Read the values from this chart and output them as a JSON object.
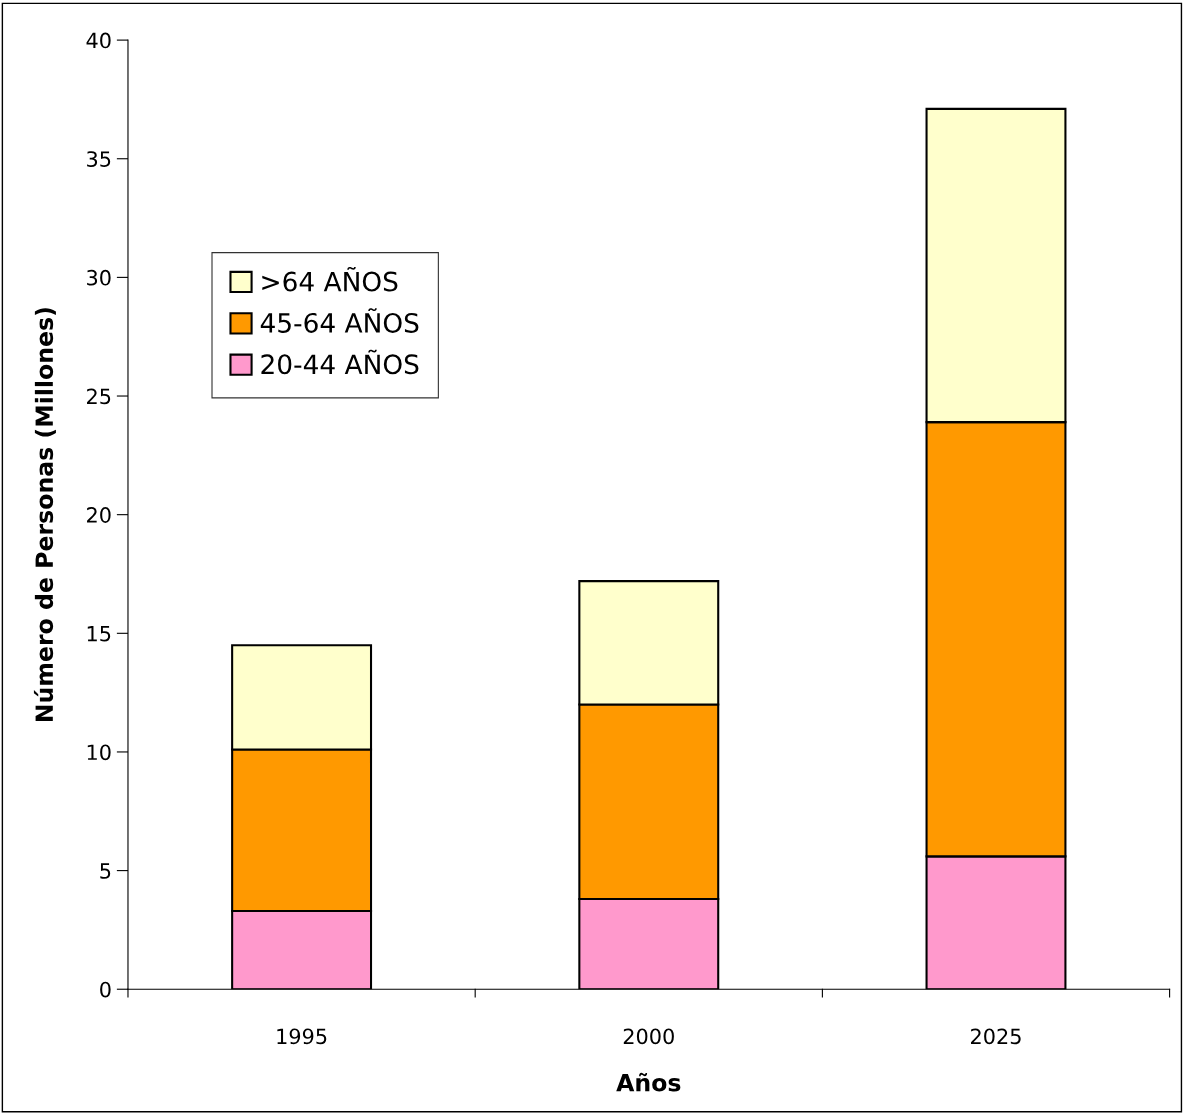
{
  "chart_data": {
    "type": "bar",
    "stacked": true,
    "xlabel": "Años",
    "ylabel": "Número de Personas (Millones)",
    "categories": [
      "1995",
      "2000",
      "2025"
    ],
    "series": [
      {
        "name": "20-44 AÑOS",
        "color": "#ff99cc",
        "values": [
          3.3,
          3.8,
          5.6
        ]
      },
      {
        "name": "45-64 AÑOS",
        "color": "#ff9900",
        "values": [
          6.8,
          8.2,
          18.3
        ]
      },
      {
        "name": ">64 AÑOS",
        "color": "#ffffcc",
        "values": [
          4.4,
          5.2,
          13.2
        ]
      }
    ],
    "ylim": [
      0,
      40
    ],
    "yticks": [
      0,
      5,
      10,
      15,
      20,
      25,
      30,
      35,
      40
    ],
    "grid": false,
    "legend": "top left"
  }
}
